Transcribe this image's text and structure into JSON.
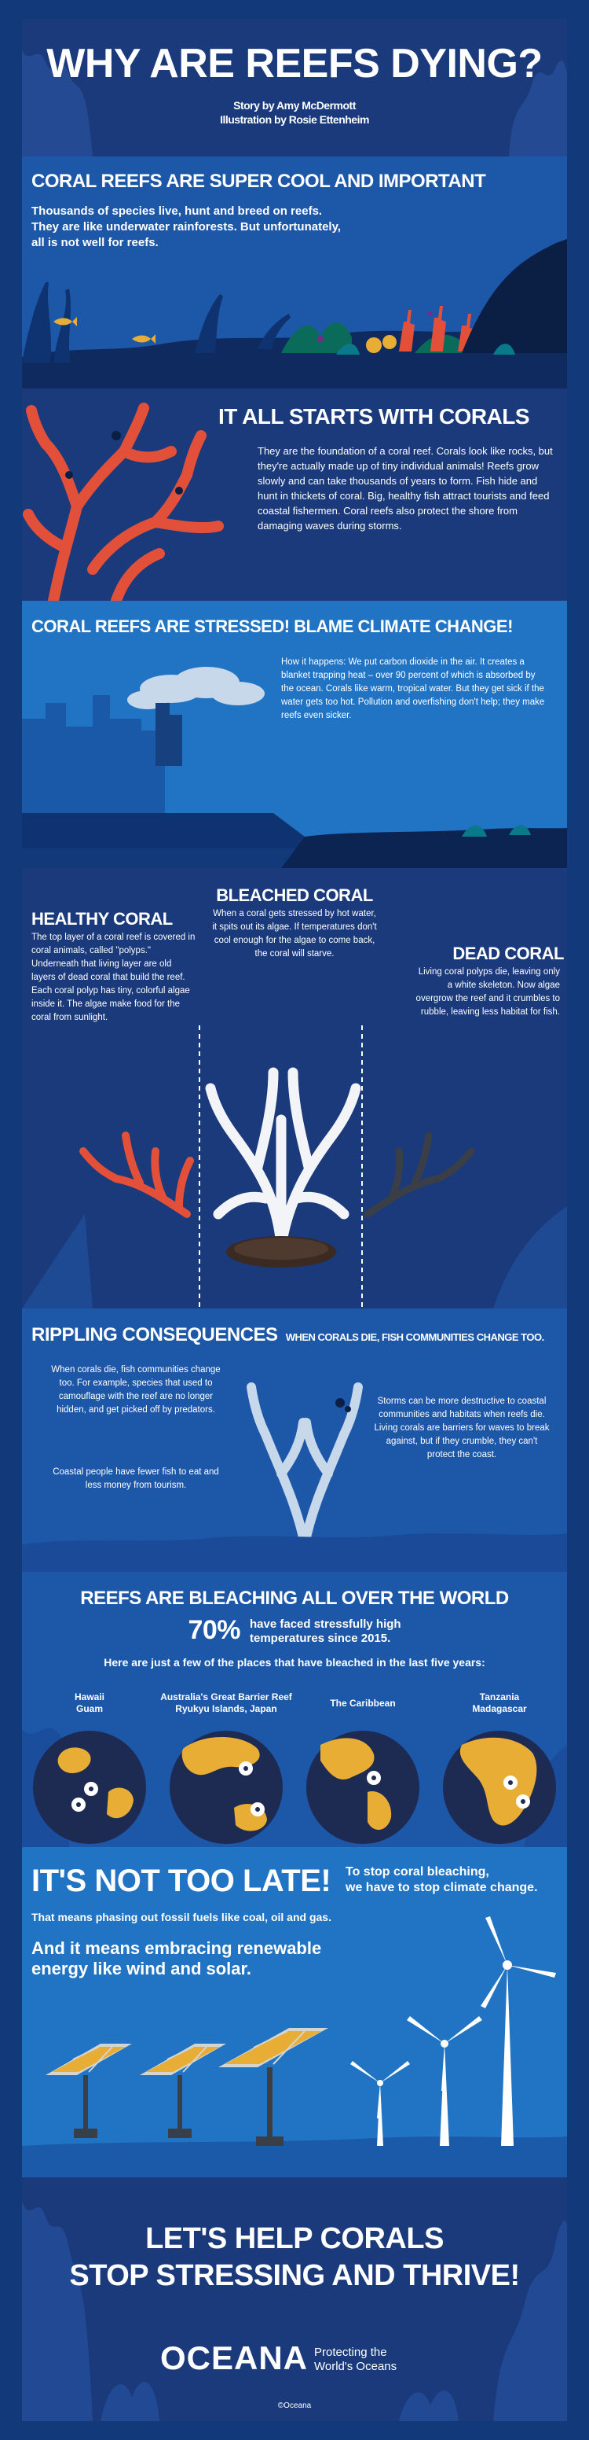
{
  "header": {
    "title": "WHY ARE REEFS DYING?",
    "byline_story": "Story by Amy McDermott",
    "byline_illustration": "Illustration by Rosie Ettenheim"
  },
  "s1": {
    "heading": "CORAL REEFS ARE SUPER COOL AND IMPORTANT",
    "text_1": "Thousands of species live, hunt and breed on reefs.",
    "text_2": "They are like underwater rainforests. But unfortunately,",
    "text_3": "all is not well for reefs."
  },
  "s2": {
    "heading": "IT ALL STARTS WITH CORALS",
    "text": "They are the foundation of a coral reef. Corals look like rocks, but they're actually made up of tiny individual animals! Reefs grow slowly and can take thousands of years to form. Fish hide and hunt in thickets of coral. Big, healthy fish attract tourists and feed coastal fishermen. Coral reefs also protect the shore from damaging waves during storms."
  },
  "s3": {
    "heading": "CORAL REEFS ARE STRESSED! BLAME CLIMATE CHANGE!",
    "text": "How it happens: We put carbon dioxide in the air. It creates a blanket trapping heat – over 90 percent of which is absorbed by the ocean. Corals like warm, tropical water. But they get sick if the water gets too hot. Pollution and overfishing don't help; they make reefs even sicker."
  },
  "s4": {
    "bleached_heading": "BLEACHED CORAL",
    "bleached_text": "When a coral gets stressed by hot water, it spits out its algae. If temperatures don't cool enough for the algae to come back, the coral will starve.",
    "healthy_heading": "HEALTHY CORAL",
    "healthy_text": "The top layer of a coral reef is covered in coral animals, called \"polyps.\" Underneath that living layer are old layers of dead coral that build the reef. Each coral polyp has tiny, colorful algae inside it. The algae make food for the coral from sunlight.",
    "dead_heading": "DEAD CORAL",
    "dead_text": "Living coral polyps die, leaving only a white skeleton. Now algae overgrow the reef and it crumbles to rubble, leaving less habitat for fish."
  },
  "s5": {
    "heading": "RIPPLING CONSEQUENCES",
    "subheading": "WHEN CORALS DIE, FISH COMMUNITIES CHANGE TOO.",
    "left_text": "When corals die, fish communities change too. For example, species that used to camouflage with the reef are no longer hidden, and get picked off by predators.",
    "left_text_2": "Coastal people have fewer fish to eat and less money from tourism.",
    "right_text": "Storms can be more destructive to coastal communities and habitats when reefs die. Living corals are barriers for waves to break against, but if they crumble, they can't protect the coast."
  },
  "s6": {
    "heading": "REEFS ARE BLEACHING ALL OVER THE WORLD",
    "stat": "70%",
    "stat_text_1": "have faced stressfully high",
    "stat_text_2": "temperatures since 2015.",
    "intro": "Here are just a few of the places that have bleached in the last five years:",
    "places": [
      {
        "line1": "Hawaii",
        "line2": "Guam"
      },
      {
        "line1": "Australia's Great Barrier Reef",
        "line2": "Ryukyu Islands, Japan"
      },
      {
        "line1": "The Caribbean",
        "line2": ""
      },
      {
        "line1": "Tanzania",
        "line2": "Madagascar"
      }
    ]
  },
  "s7": {
    "heading": "IT'S NOT TOO LATE!",
    "side_1": "To stop coral bleaching,",
    "side_2": "we have to stop climate change.",
    "text": "That means phasing out fossil fuels like coal, oil and gas.",
    "big_1": "And it means embracing renewable",
    "big_2": "energy like wind and solar."
  },
  "s8": {
    "line_1": "LET'S HELP CORALS",
    "line_2": "STOP STRESSING AND THRIVE!",
    "logo": "OCEANA",
    "tagline_1": "Protecting the",
    "tagline_2": "World's Oceans",
    "copyright": "©Oceana"
  },
  "colors": {
    "navy": "#1a3a7c",
    "mid_blue": "#1d57a8",
    "bright_blue": "#2174c4",
    "coral_red": "#e2503a",
    "gold": "#e8ad35",
    "planet": "#1d2a52"
  }
}
